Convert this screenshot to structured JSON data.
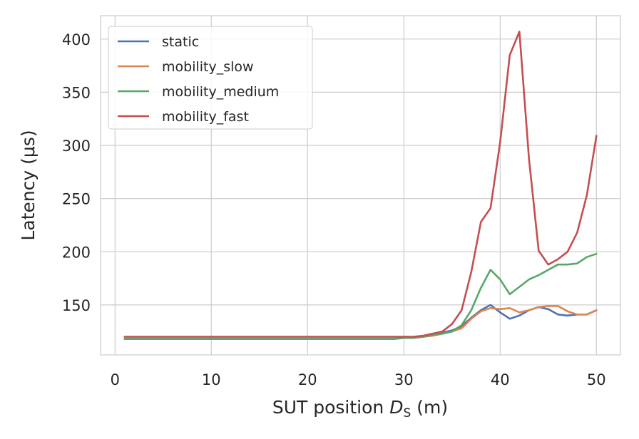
{
  "chart_data": {
    "type": "line",
    "title": "",
    "xlabel": "SUT position",
    "xlabel_symbol": "D",
    "xlabel_subscript": "S",
    "xlabel_unit": "(m)",
    "ylabel": "Latency (μs)",
    "xlim": [
      -1.5,
      52.5
    ],
    "ylim": [
      103,
      422
    ],
    "xticks": [
      0,
      10,
      20,
      30,
      40,
      50
    ],
    "yticks": [
      150,
      200,
      250,
      300,
      350,
      400
    ],
    "grid": true,
    "legend_position": "top-left",
    "x": [
      1,
      2,
      3,
      4,
      5,
      6,
      7,
      8,
      9,
      10,
      11,
      12,
      13,
      14,
      15,
      16,
      17,
      18,
      19,
      20,
      21,
      22,
      23,
      24,
      25,
      26,
      27,
      28,
      29,
      30,
      31,
      32,
      33,
      34,
      35,
      36,
      37,
      38,
      39,
      40,
      41,
      42,
      43,
      44,
      45,
      46,
      47,
      48,
      49,
      50
    ],
    "series": [
      {
        "name": "static",
        "color": "#4c72b0",
        "values": [
          118,
          118,
          118,
          118,
          118,
          118,
          118,
          118,
          118,
          118,
          118,
          118,
          118,
          118,
          118,
          118,
          118,
          118,
          118,
          118,
          118,
          118,
          118,
          118,
          118,
          118,
          118,
          118,
          118,
          119,
          119,
          120,
          122,
          124,
          126,
          130,
          138,
          145,
          150,
          143,
          137,
          140,
          145,
          148,
          146,
          141,
          140,
          141,
          141,
          145
        ]
      },
      {
        "name": "mobility_slow",
        "color": "#dd8452",
        "values": [
          118,
          118,
          118,
          118,
          118,
          118,
          118,
          118,
          118,
          118,
          118,
          118,
          118,
          118,
          118,
          118,
          118,
          118,
          118,
          118,
          118,
          118,
          118,
          118,
          118,
          118,
          118,
          118,
          118,
          119,
          119,
          120,
          121,
          123,
          125,
          128,
          137,
          144,
          147,
          146,
          147,
          143,
          145,
          148,
          149,
          149,
          144,
          141,
          141,
          145
        ]
      },
      {
        "name": "mobility_medium",
        "color": "#55a868",
        "values": [
          118,
          118,
          118,
          118,
          118,
          118,
          118,
          118,
          118,
          118,
          118,
          118,
          118,
          118,
          118,
          118,
          118,
          118,
          118,
          118,
          118,
          118,
          118,
          118,
          118,
          118,
          118,
          118,
          118,
          119,
          119,
          120,
          122,
          123,
          125,
          131,
          145,
          166,
          183,
          174,
          160,
          167,
          174,
          178,
          183,
          188,
          188,
          189,
          195,
          198
        ]
      },
      {
        "name": "mobility_fast",
        "color": "#c44e52",
        "values": [
          120,
          120,
          120,
          120,
          120,
          120,
          120,
          120,
          120,
          120,
          120,
          120,
          120,
          120,
          120,
          120,
          120,
          120,
          120,
          120,
          120,
          120,
          120,
          120,
          120,
          120,
          120,
          120,
          120,
          120,
          120,
          121,
          123,
          125,
          132,
          145,
          181,
          228,
          241,
          303,
          385,
          407,
          287,
          201,
          188,
          193,
          200,
          218,
          253,
          309
        ]
      }
    ]
  }
}
